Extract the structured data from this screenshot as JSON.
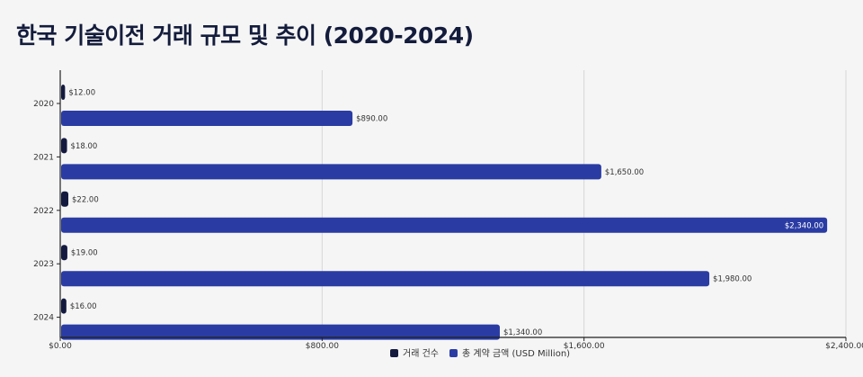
{
  "chart_data": {
    "type": "bar",
    "orientation": "horizontal",
    "title": "한국 기술이전 거래 규모 및 추이 (2020-2024)",
    "categories": [
      "2020",
      "2021",
      "2022",
      "2023",
      "2024"
    ],
    "series": [
      {
        "name": "거래 건수",
        "values": [
          12,
          18,
          22,
          19,
          16
        ],
        "labels": [
          "$12.00",
          "$18.00",
          "$22.00",
          "$19.00",
          "$16.00"
        ],
        "color": "#141a3f"
      },
      {
        "name": "총 계약 금액 (USD Million)",
        "values": [
          890,
          1650,
          2340,
          1980,
          1340
        ],
        "labels": [
          "$890.00",
          "$1,650.00",
          "$2,340.00",
          "$1,980.00",
          "$1,340.00"
        ],
        "color": "#2a3ca3"
      }
    ],
    "xlim": [
      0,
      2400
    ],
    "xticks": [
      0,
      800,
      1600,
      2400
    ],
    "xtick_labels": [
      "$0.00",
      "$800.00",
      "$1,600.00",
      "$2,400.00"
    ],
    "grid": true,
    "legend": "bottom"
  }
}
